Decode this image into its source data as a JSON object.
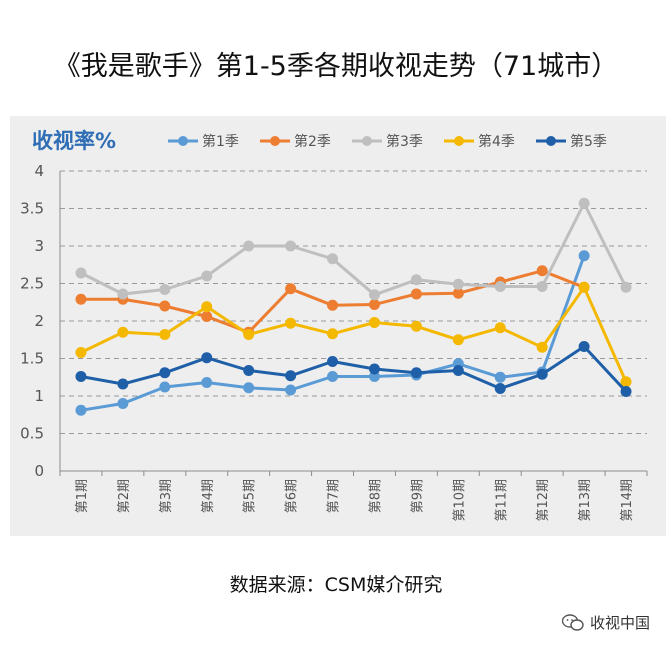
{
  "title": "《我是歌手》第1-5季各期收视走势（71城市）",
  "source": "数据来源：CSM媒介研究",
  "watermark": "收视中国",
  "chart_data": {
    "type": "line",
    "ylabel": "收视率%",
    "ylim": [
      0,
      4
    ],
    "yticks": [
      "0",
      "0.5",
      "1",
      "1.5",
      "2",
      "2.5",
      "3",
      "3.5",
      "4"
    ],
    "grid": "horizontal-dashed",
    "legend_position": "top",
    "categories": [
      "第1期",
      "第2期",
      "第3期",
      "第4期",
      "第5期",
      "第6期",
      "第7期",
      "第8期",
      "第9期",
      "第10期",
      "第11期",
      "第12期",
      "第13期",
      "第14期"
    ],
    "series": [
      {
        "name": "第1季",
        "color": "#5b9bd5",
        "values": [
          0.81,
          0.9,
          1.12,
          1.18,
          1.11,
          1.08,
          1.26,
          1.26,
          1.28,
          1.43,
          1.25,
          1.32,
          2.87,
          null
        ]
      },
      {
        "name": "第2季",
        "color": "#ed7d31",
        "values": [
          2.29,
          2.29,
          2.2,
          2.06,
          1.85,
          2.43,
          2.21,
          2.22,
          2.36,
          2.37,
          2.52,
          2.67,
          2.45,
          null
        ]
      },
      {
        "name": "第3季",
        "color": "#bfbfbf",
        "values": [
          2.64,
          2.36,
          2.42,
          2.6,
          3.0,
          3.0,
          2.83,
          2.35,
          2.55,
          2.49,
          2.46,
          2.46,
          3.57,
          2.45
        ]
      },
      {
        "name": "第4季",
        "color": "#f5b800",
        "values": [
          1.58,
          1.85,
          1.82,
          2.19,
          1.82,
          1.97,
          1.83,
          1.98,
          1.93,
          1.75,
          1.91,
          1.65,
          2.45,
          1.19
        ]
      },
      {
        "name": "第5季",
        "color": "#1f5fa8",
        "values": [
          1.26,
          1.16,
          1.31,
          1.51,
          1.34,
          1.27,
          1.46,
          1.36,
          1.31,
          1.34,
          1.1,
          1.29,
          1.66,
          1.06
        ]
      }
    ]
  }
}
